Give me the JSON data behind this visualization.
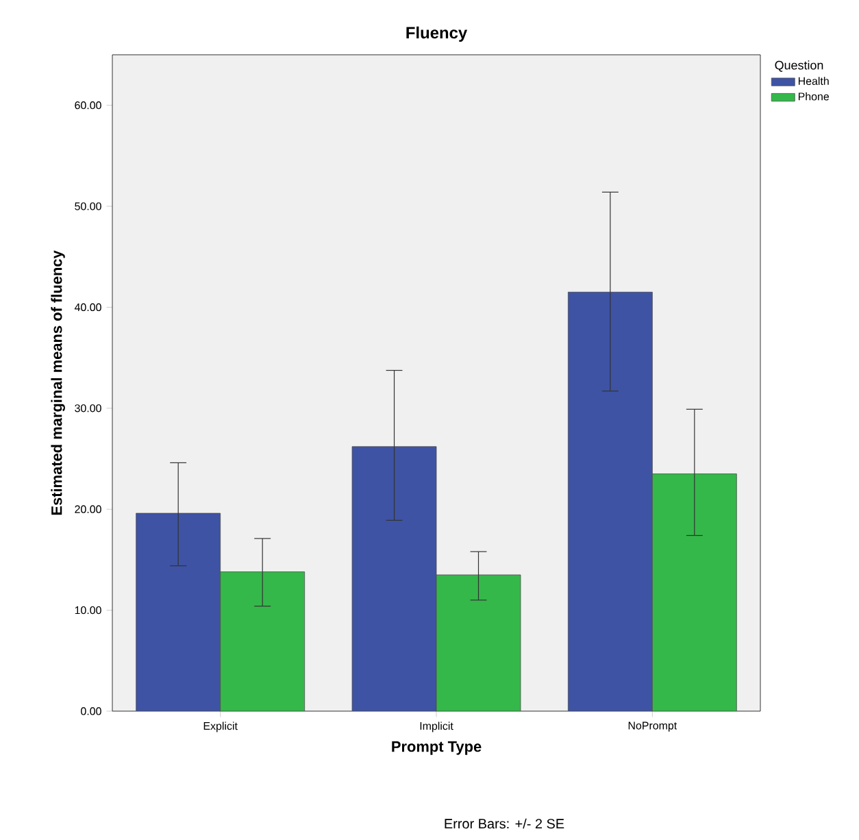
{
  "chart_data": {
    "type": "bar",
    "title": "Fluency",
    "xlabel": "Prompt Type",
    "ylabel": "Estimated marginal means of fluency",
    "legend_title": "Question",
    "categories": [
      "Explicit",
      "Implicit",
      "NoPrompt"
    ],
    "series": [
      {
        "name": "Health",
        "color": "#3e53a4",
        "values": [
          19.6,
          26.2,
          41.5
        ],
        "errors": [
          [
            14.4,
            24.6
          ],
          [
            18.9,
            33.75
          ],
          [
            31.7,
            51.4
          ]
        ]
      },
      {
        "name": "Phone",
        "color": "#34b84a",
        "values": [
          13.8,
          13.5,
          23.5
        ],
        "errors": [
          [
            10.4,
            17.1
          ],
          [
            11.0,
            15.8
          ],
          [
            17.4,
            29.9
          ]
        ]
      }
    ],
    "ylim": [
      0,
      65
    ],
    "yticks": [
      {
        "value": 0,
        "label": "0.00"
      },
      {
        "value": 10,
        "label": "10.00"
      },
      {
        "value": 20,
        "label": "20.00"
      },
      {
        "value": 30,
        "label": "30.00"
      },
      {
        "value": 40,
        "label": "40.00"
      },
      {
        "value": 50,
        "label": "50.00"
      },
      {
        "value": 60,
        "label": "60.00"
      }
    ],
    "legend": "top right",
    "grid": false,
    "annotations": [
      "Error Bars: +/- 2 SE"
    ]
  }
}
